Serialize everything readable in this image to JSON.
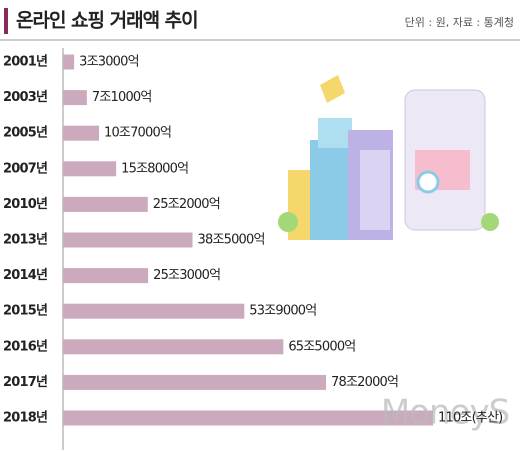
{
  "chart_data": {
    "type": "bar",
    "orientation": "horizontal",
    "title": "온라인 쇼핑 거래액 추이",
    "subtitle": "단위 : 원, 자료 : 통계청",
    "watermark": "MoneyS",
    "color": "#cbaabe",
    "categories": [
      "2001년",
      "2003년",
      "2005년",
      "2007년",
      "2010년",
      "2013년",
      "2014년",
      "2015년",
      "2016년",
      "2017년",
      "2018년"
    ],
    "values": [
      3.3,
      7.1,
      10.7,
      15.8,
      25.2,
      38.5,
      25.3,
      53.9,
      65.5,
      78.2,
      110
    ],
    "value_labels": [
      "3조3000억",
      "7조1000억",
      "10조7000억",
      "15조8000억",
      "25조2000억",
      "38조5000억",
      "25조3000억",
      "53조9000억",
      "65조5000억",
      "78조2000억",
      "110조(추산)"
    ]
  }
}
